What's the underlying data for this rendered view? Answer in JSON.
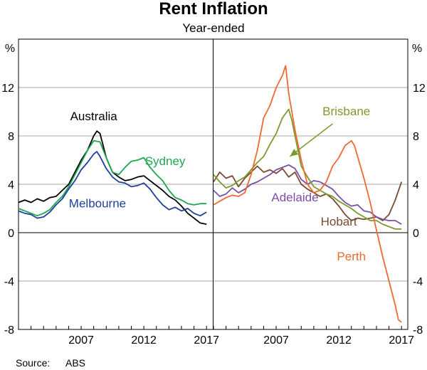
{
  "chart_data": {
    "title": "Rent Inflation",
    "subtitle": "Year-ended",
    "unit_left": "%",
    "unit_right": "%",
    "source_label": "Source:",
    "source_value": "ABS",
    "type": "line",
    "ylim": [
      -8,
      16
    ],
    "yticks": [
      -8,
      -4,
      0,
      4,
      8,
      12
    ],
    "xlim": [
      2002.0,
      2017.5
    ],
    "xticks": [
      2007,
      2012,
      2017
    ],
    "grid": true,
    "panels": [
      {
        "series": [
          {
            "name": "Australia",
            "color": "#000000",
            "points": [
              [
                2002.0,
                2.5
              ],
              [
                2002.5,
                2.7
              ],
              [
                2003.0,
                2.5
              ],
              [
                2003.5,
                2.8
              ],
              [
                2004.0,
                2.6
              ],
              [
                2004.5,
                2.9
              ],
              [
                2005.0,
                3.0
              ],
              [
                2005.5,
                3.5
              ],
              [
                2006.0,
                4.0
              ],
              [
                2006.5,
                5.0
              ],
              [
                2007.0,
                6.0
              ],
              [
                2007.5,
                6.8
              ],
              [
                2008.0,
                8.0
              ],
              [
                2008.25,
                8.4
              ],
              [
                2008.5,
                8.2
              ],
              [
                2008.75,
                7.2
              ],
              [
                2009.0,
                6.2
              ],
              [
                2009.5,
                5.0
              ],
              [
                2010.0,
                4.6
              ],
              [
                2010.5,
                4.3
              ],
              [
                2011.0,
                4.4
              ],
              [
                2011.5,
                4.6
              ],
              [
                2012.0,
                4.7
              ],
              [
                2012.5,
                4.3
              ],
              [
                2013.0,
                3.9
              ],
              [
                2013.5,
                3.5
              ],
              [
                2014.0,
                3.0
              ],
              [
                2014.5,
                2.7
              ],
              [
                2015.0,
                2.2
              ],
              [
                2015.5,
                1.6
              ],
              [
                2016.0,
                1.2
              ],
              [
                2016.5,
                0.8
              ],
              [
                2017.0,
                0.7
              ]
            ]
          },
          {
            "name": "Sydney",
            "color": "#1ea650",
            "points": [
              [
                2002.0,
                2.0
              ],
              [
                2002.5,
                1.8
              ],
              [
                2003.0,
                1.6
              ],
              [
                2003.5,
                1.4
              ],
              [
                2004.0,
                1.6
              ],
              [
                2004.5,
                1.9
              ],
              [
                2005.0,
                2.5
              ],
              [
                2005.5,
                3.0
              ],
              [
                2006.0,
                3.8
              ],
              [
                2006.5,
                4.8
              ],
              [
                2007.0,
                5.8
              ],
              [
                2007.5,
                6.8
              ],
              [
                2008.0,
                7.6
              ],
              [
                2008.5,
                7.5
              ],
              [
                2009.0,
                6.2
              ],
              [
                2009.5,
                5.0
              ],
              [
                2010.0,
                4.8
              ],
              [
                2010.5,
                5.4
              ],
              [
                2011.0,
                5.9
              ],
              [
                2011.5,
                6.0
              ],
              [
                2012.0,
                6.2
              ],
              [
                2012.5,
                5.4
              ],
              [
                2013.0,
                4.8
              ],
              [
                2013.5,
                4.3
              ],
              [
                2014.0,
                3.5
              ],
              [
                2014.5,
                2.9
              ],
              [
                2015.0,
                2.7
              ],
              [
                2015.5,
                2.4
              ],
              [
                2016.0,
                2.3
              ],
              [
                2016.5,
                2.4
              ],
              [
                2017.0,
                2.4
              ]
            ]
          },
          {
            "name": "Melbourne",
            "color": "#1f3f9b",
            "points": [
              [
                2002.0,
                1.8
              ],
              [
                2002.5,
                1.6
              ],
              [
                2003.0,
                1.5
              ],
              [
                2003.5,
                1.2
              ],
              [
                2004.0,
                1.3
              ],
              [
                2004.5,
                1.7
              ],
              [
                2005.0,
                2.3
              ],
              [
                2005.5,
                2.8
              ],
              [
                2006.0,
                3.6
              ],
              [
                2006.5,
                4.3
              ],
              [
                2007.0,
                5.2
              ],
              [
                2007.5,
                5.8
              ],
              [
                2008.0,
                6.5
              ],
              [
                2008.25,
                6.7
              ],
              [
                2008.5,
                6.3
              ],
              [
                2009.0,
                5.3
              ],
              [
                2009.5,
                4.6
              ],
              [
                2010.0,
                4.2
              ],
              [
                2010.5,
                4.1
              ],
              [
                2011.0,
                3.8
              ],
              [
                2011.5,
                3.9
              ],
              [
                2012.0,
                4.1
              ],
              [
                2012.5,
                3.6
              ],
              [
                2013.0,
                2.9
              ],
              [
                2013.5,
                2.3
              ],
              [
                2014.0,
                1.9
              ],
              [
                2014.5,
                2.1
              ],
              [
                2015.0,
                1.8
              ],
              [
                2015.5,
                2.0
              ],
              [
                2016.0,
                1.6
              ],
              [
                2016.5,
                1.4
              ],
              [
                2017.0,
                1.7
              ]
            ]
          }
        ]
      },
      {
        "series": [
          {
            "name": "Hobart",
            "color": "#7a4a32",
            "points": [
              [
                2002.0,
                4.2
              ],
              [
                2002.5,
                5.0
              ],
              [
                2003.0,
                4.5
              ],
              [
                2003.5,
                4.7
              ],
              [
                2004.0,
                3.8
              ],
              [
                2004.5,
                4.5
              ],
              [
                2005.0,
                5.0
              ],
              [
                2005.5,
                5.5
              ],
              [
                2006.0,
                5.0
              ],
              [
                2006.5,
                5.2
              ],
              [
                2007.0,
                4.9
              ],
              [
                2007.5,
                5.3
              ],
              [
                2008.0,
                4.6
              ],
              [
                2008.5,
                5.0
              ],
              [
                2009.0,
                4.0
              ],
              [
                2009.5,
                3.6
              ],
              [
                2010.0,
                3.3
              ],
              [
                2010.5,
                3.0
              ],
              [
                2011.0,
                3.2
              ],
              [
                2011.5,
                2.8
              ],
              [
                2012.0,
                2.2
              ],
              [
                2012.5,
                1.5
              ],
              [
                2013.0,
                1.0
              ],
              [
                2013.5,
                1.2
              ],
              [
                2014.0,
                1.1
              ],
              [
                2014.5,
                1.2
              ],
              [
                2015.0,
                1.3
              ],
              [
                2015.5,
                1.0
              ],
              [
                2016.0,
                1.5
              ],
              [
                2016.5,
                2.7
              ],
              [
                2017.0,
                4.2
              ]
            ]
          },
          {
            "name": "Adelaide",
            "color": "#7b4ea8",
            "points": [
              [
                2002.0,
                3.5
              ],
              [
                2002.5,
                3.0
              ],
              [
                2003.0,
                3.2
              ],
              [
                2003.5,
                3.7
              ],
              [
                2004.0,
                3.3
              ],
              [
                2004.5,
                3.6
              ],
              [
                2005.0,
                4.0
              ],
              [
                2005.5,
                4.2
              ],
              [
                2006.0,
                4.5
              ],
              [
                2006.5,
                4.8
              ],
              [
                2007.0,
                5.2
              ],
              [
                2007.5,
                5.4
              ],
              [
                2008.0,
                5.6
              ],
              [
                2008.5,
                5.3
              ],
              [
                2009.0,
                4.4
              ],
              [
                2009.5,
                4.0
              ],
              [
                2010.0,
                4.3
              ],
              [
                2010.5,
                4.2
              ],
              [
                2011.0,
                3.9
              ],
              [
                2011.5,
                3.6
              ],
              [
                2012.0,
                3.0
              ],
              [
                2012.5,
                2.5
              ],
              [
                2013.0,
                2.2
              ],
              [
                2013.5,
                2.3
              ],
              [
                2014.0,
                1.8
              ],
              [
                2014.5,
                1.7
              ],
              [
                2015.0,
                1.3
              ],
              [
                2015.5,
                1.1
              ],
              [
                2016.0,
                1.0
              ],
              [
                2016.5,
                1.0
              ],
              [
                2017.0,
                0.7
              ]
            ]
          },
          {
            "name": "Brisbane",
            "color": "#7c9b2e",
            "points": [
              [
                2002.0,
                4.8
              ],
              [
                2002.5,
                4.2
              ],
              [
                2003.0,
                3.7
              ],
              [
                2003.5,
                3.9
              ],
              [
                2004.0,
                4.3
              ],
              [
                2004.5,
                4.6
              ],
              [
                2005.0,
                5.2
              ],
              [
                2005.5,
                5.8
              ],
              [
                2006.0,
                6.3
              ],
              [
                2006.5,
                7.3
              ],
              [
                2007.0,
                8.2
              ],
              [
                2007.5,
                9.5
              ],
              [
                2008.0,
                10.2
              ],
              [
                2008.25,
                9.3
              ],
              [
                2008.5,
                8.0
              ],
              [
                2009.0,
                5.5
              ],
              [
                2009.5,
                4.6
              ],
              [
                2010.0,
                3.8
              ],
              [
                2010.5,
                3.5
              ],
              [
                2011.0,
                3.2
              ],
              [
                2011.5,
                3.0
              ],
              [
                2012.0,
                2.6
              ],
              [
                2012.5,
                2.3
              ],
              [
                2013.0,
                2.0
              ],
              [
                2013.5,
                1.6
              ],
              [
                2014.0,
                1.3
              ],
              [
                2014.5,
                1.0
              ],
              [
                2015.0,
                1.0
              ],
              [
                2015.5,
                0.7
              ],
              [
                2016.0,
                0.5
              ],
              [
                2016.5,
                0.3
              ],
              [
                2017.0,
                0.3
              ]
            ]
          },
          {
            "name": "Perth",
            "color": "#ef6a2e",
            "points": [
              [
                2002.0,
                2.3
              ],
              [
                2002.5,
                2.6
              ],
              [
                2003.0,
                2.9
              ],
              [
                2003.5,
                3.1
              ],
              [
                2004.0,
                3.0
              ],
              [
                2004.5,
                3.3
              ],
              [
                2005.0,
                4.8
              ],
              [
                2005.5,
                6.8
              ],
              [
                2006.0,
                9.5
              ],
              [
                2006.5,
                10.5
              ],
              [
                2007.0,
                12.0
              ],
              [
                2007.5,
                13.0
              ],
              [
                2007.75,
                13.8
              ],
              [
                2008.0,
                11.5
              ],
              [
                2008.5,
                8.5
              ],
              [
                2009.0,
                6.0
              ],
              [
                2009.5,
                4.0
              ],
              [
                2010.0,
                3.3
              ],
              [
                2010.5,
                3.5
              ],
              [
                2011.0,
                4.2
              ],
              [
                2011.5,
                5.5
              ],
              [
                2012.0,
                6.2
              ],
              [
                2012.5,
                7.2
              ],
              [
                2013.0,
                7.6
              ],
              [
                2013.25,
                7.2
              ],
              [
                2013.5,
                6.3
              ],
              [
                2014.0,
                4.5
              ],
              [
                2014.5,
                2.5
              ],
              [
                2015.0,
                0.2
              ],
              [
                2015.5,
                -2.0
              ],
              [
                2016.0,
                -4.0
              ],
              [
                2016.5,
                -6.0
              ],
              [
                2016.75,
                -7.2
              ],
              [
                2017.0,
                -7.4
              ]
            ]
          }
        ]
      }
    ],
    "labels": [
      {
        "panel": 0,
        "series": "Australia",
        "text": "Australia",
        "x": 2008.0,
        "y": 9.3
      },
      {
        "panel": 0,
        "series": "Sydney",
        "text": "Sydney",
        "x": 2013.7,
        "y": 5.6
      },
      {
        "panel": 0,
        "series": "Melbourne",
        "text": "Melbourne",
        "x": 2008.3,
        "y": 2.1
      },
      {
        "panel": 1,
        "series": "Brisbane",
        "text": "Brisbane",
        "x": 2012.6,
        "y": 9.7
      },
      {
        "panel": 1,
        "series": "Adelaide",
        "text": "Adelaide",
        "x": 2008.5,
        "y": 2.6
      },
      {
        "panel": 1,
        "series": "Hobart",
        "text": "Hobart",
        "x": 2012.0,
        "y": 0.6
      },
      {
        "panel": 1,
        "series": "Perth",
        "text": "Perth",
        "x": 2013.0,
        "y": -2.3
      }
    ],
    "arrow": {
      "panel": 1,
      "from": [
        2011.5,
        9.0
      ],
      "to": [
        2008.1,
        6.3
      ],
      "color": "#7c9b2e"
    }
  }
}
